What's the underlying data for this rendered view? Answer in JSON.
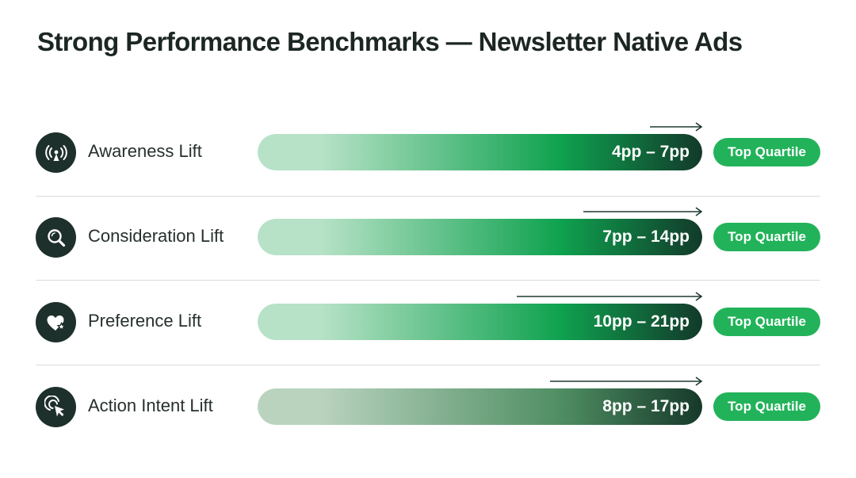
{
  "title": "Strong Performance Benchmarks — Newsletter Native Ads",
  "colors": {
    "dark": "#1e302b",
    "accent": "#22b35a",
    "bar_light": "#b7e2c7",
    "bar_mid": "#0fa24f",
    "bar_dark": "#123a2a",
    "action_light": "#b9d3bf",
    "action_mid": "#4f8e63",
    "action_dark": "#16392a"
  },
  "chart_data": {
    "type": "bar",
    "orientation": "horizontal",
    "categories": [
      "Awareness Lift",
      "Consideration Lift",
      "Preference Lift",
      "Action Intent Lift"
    ],
    "series": [
      {
        "low": [
          4,
          7,
          10,
          8
        ],
        "high": [
          7,
          14,
          21,
          17
        ]
      }
    ],
    "unit": "pp",
    "range_labels": [
      "4pp – 7pp",
      "7pp – 14pp",
      "10pp – 21pp",
      "8pp – 17pp"
    ],
    "badges": [
      "Top Quartile",
      "Top Quartile",
      "Top Quartile",
      "Top Quartile"
    ],
    "icons": [
      "broadcast-icon",
      "magnifier-icon",
      "heart-star-icon",
      "cursor-click-icon"
    ],
    "xlim": [
      0,
      30
    ],
    "grid": false,
    "legend": "none"
  }
}
